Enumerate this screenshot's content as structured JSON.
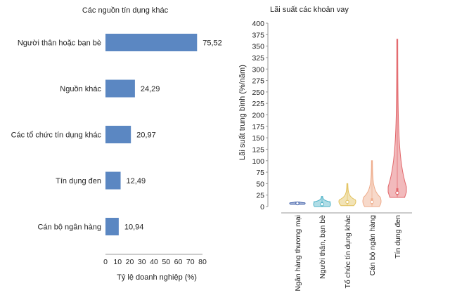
{
  "chart_data": [
    {
      "type": "bar",
      "orientation": "horizontal",
      "title": "Các nguồn tín dụng khác",
      "xlabel": "Tỷ lệ doanh nghiệp (%)",
      "ylabel": "",
      "categories": [
        "Người thân hoặc bạn bè",
        "Nguồn khác",
        "Các tổ chức tín dụng khác",
        "Tín dụng đen",
        "Cán bộ ngân hàng"
      ],
      "values": [
        75.52,
        24.29,
        20.97,
        12.49,
        10.94
      ],
      "value_labels": [
        "75,52",
        "24,29",
        "20,97",
        "12,49",
        "10,94"
      ],
      "xlim": [
        0,
        80
      ],
      "xticks": [
        "0",
        "10",
        "20",
        "30",
        "40",
        "50",
        "60",
        "70",
        "80"
      ],
      "bar_color": "#5b87c2",
      "grid": false
    },
    {
      "type": "violin",
      "title": "Lãi suất các khoản vay",
      "xlabel": "",
      "ylabel": "Lãi suất trung bình (%/năm)",
      "ylim": [
        0,
        400
      ],
      "yticks": [
        "0",
        "25",
        "50",
        "75",
        "100",
        "125",
        "150",
        "175",
        "200",
        "225",
        "250",
        "275",
        "300",
        "325",
        "350",
        "375",
        "400"
      ],
      "categories": [
        "Ngân hàng thương mại",
        "Người thân, bạn bè",
        "Tổ chức tín dụng khác",
        "Cán bộ ngân hàng",
        "Tín dụng đen"
      ],
      "series": [
        {
          "name": "Ngân hàng thương mại",
          "median": 7,
          "min": 5,
          "max": 10,
          "q1": 6,
          "q3": 8,
          "color": "#3d5ea8"
        },
        {
          "name": "Người thân, bạn bè",
          "median": 5,
          "min": 0,
          "max": 22,
          "q1": 0,
          "q3": 10,
          "color": "#4fb3c8"
        },
        {
          "name": "Tổ chức tín dụng khác",
          "median": 10,
          "min": 2,
          "max": 50,
          "q1": 8,
          "q3": 14,
          "color": "#e2c25e"
        },
        {
          "name": "Cán bộ ngân hàng",
          "median": 10,
          "min": 0,
          "max": 100,
          "q1": 5,
          "q3": 18,
          "color": "#eeab8a"
        },
        {
          "name": "Tín dụng đen",
          "median": 30,
          "min": 20,
          "max": 365,
          "q1": 25,
          "q3": 40,
          "color": "#e2676b"
        }
      ],
      "grid": false
    }
  ]
}
